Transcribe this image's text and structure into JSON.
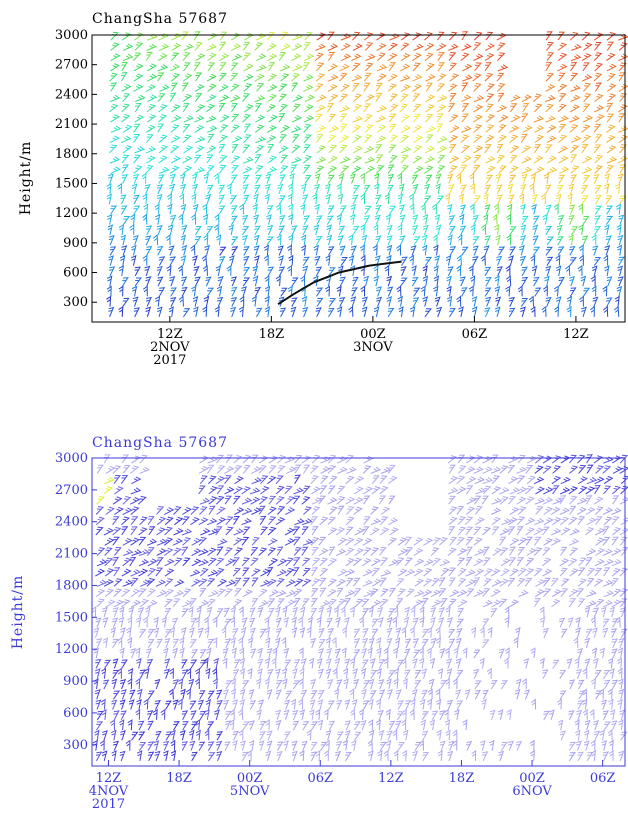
{
  "chart_data": [
    {
      "type": "wind-barb time-height section",
      "title": "ChangSha 57687",
      "xlabel": "",
      "ylabel": "Height/m",
      "ylim": [
        100,
        3000
      ],
      "yticks": [
        "3000",
        "2700",
        "2400",
        "2100",
        "1800",
        "1500",
        "1200",
        "900",
        "600",
        "300"
      ],
      "yvalues": [
        3000,
        2700,
        2400,
        2100,
        1800,
        1500,
        1200,
        900,
        600,
        300
      ],
      "xticks": [
        {
          "hour": 12,
          "line1": "12Z",
          "line2": "2NOV",
          "line3": "2017"
        },
        {
          "hour": 18,
          "line1": "18Z",
          "line2": "",
          "line3": ""
        },
        {
          "hour": 24,
          "line1": "00Z",
          "line2": "3NOV",
          "line3": ""
        },
        {
          "hour": 30,
          "line1": "06Z",
          "line2": "",
          "line3": ""
        },
        {
          "hour": 36,
          "line1": "12Z",
          "line2": "",
          "line3": ""
        }
      ],
      "xlim": [
        7.4,
        38.9
      ],
      "color_scheme": "rainbow (purple-blue-cyan-green-yellow-red by wind speed)",
      "boundary_layer_line": [
        [
          18.4,
          280
        ],
        [
          19.3,
          380
        ],
        [
          20.5,
          500
        ],
        [
          22,
          600
        ],
        [
          23.8,
          670
        ],
        [
          25.7,
          710
        ]
      ],
      "frame_color": "#000000",
      "text_color": "#000000"
    },
    {
      "type": "wind-barb time-height section",
      "title": "ChangSha 57687",
      "xlabel": "",
      "ylabel": "Height/m",
      "ylim": [
        100,
        3000
      ],
      "yticks": [
        "3000",
        "2700",
        "2400",
        "2100",
        "1800",
        "1500",
        "1200",
        "900",
        "600",
        "300"
      ],
      "yvalues": [
        3000,
        2700,
        2400,
        2100,
        1800,
        1500,
        1200,
        900,
        600,
        300
      ],
      "xticks": [
        {
          "hour": 12,
          "line1": "12Z",
          "line2": "4NOV",
          "line3": "2017"
        },
        {
          "hour": 18,
          "line1": "18Z",
          "line2": "",
          "line3": ""
        },
        {
          "hour": 24,
          "line1": "00Z",
          "line2": "5NOV",
          "line3": ""
        },
        {
          "hour": 30,
          "line1": "06Z",
          "line2": "",
          "line3": ""
        },
        {
          "hour": 36,
          "line1": "12Z",
          "line2": "",
          "line3": ""
        },
        {
          "hour": 42,
          "line1": "18Z",
          "line2": "",
          "line3": ""
        },
        {
          "hour": 48,
          "line1": "00Z",
          "line2": "6NOV",
          "line3": ""
        },
        {
          "hour": 54,
          "line1": "06Z",
          "line2": "",
          "line3": ""
        }
      ],
      "xlim": [
        10.6,
        55.9
      ],
      "color_scheme": "light purple to dark blue, yellow/red at upper-left corner",
      "frame_color": "#3b3bd8",
      "text_color": "#3b3bd8"
    }
  ]
}
